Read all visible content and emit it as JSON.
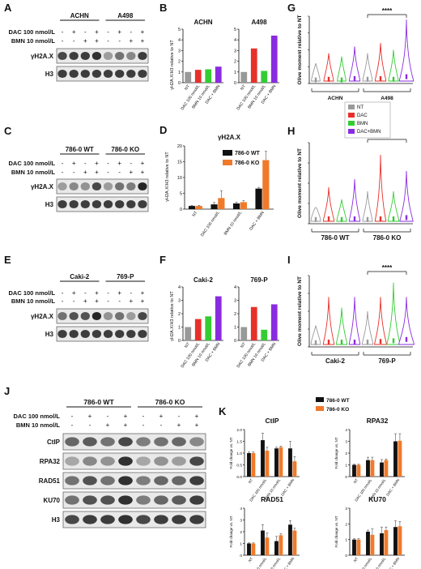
{
  "panels": {
    "A": {
      "letter": "A",
      "groups": [
        "ACHN",
        "A498"
      ],
      "dac_label": "DAC 100 nmol/L",
      "bmn_label": "BMN 10 nmol/L",
      "dac_signs": [
        "-",
        "+",
        "-",
        "+",
        "-",
        "+",
        "-",
        "+"
      ],
      "bmn_signs": [
        "-",
        "-",
        "+",
        "+",
        "-",
        "-",
        "+",
        "+"
      ],
      "bands": [
        "γH2A.X",
        "H3"
      ]
    },
    "C": {
      "letter": "C",
      "groups": [
        "786-0 WT",
        "786-0 KO"
      ],
      "dac_label": "DAC 100 nmol/L",
      "bmn_label": "BMN 10 nmol/L",
      "dac_signs": [
        "-",
        "+",
        "-",
        "+",
        "-",
        "+",
        "-",
        "+"
      ],
      "bmn_signs": [
        "-",
        "-",
        "+",
        "+",
        "-",
        "-",
        "+",
        "+"
      ],
      "bands": [
        "γH2A.X",
        "H3"
      ]
    },
    "E": {
      "letter": "E",
      "groups": [
        "Caki-2",
        "769-P"
      ],
      "dac_label": "DAC 100 nmol/L",
      "bmn_label": "BMN 10 nmol/L",
      "dac_signs": [
        "-",
        "+",
        "-",
        "+",
        "-",
        "+",
        "-",
        "+"
      ],
      "bmn_signs": [
        "-",
        "-",
        "+",
        "+",
        "-",
        "-",
        "+",
        "+"
      ],
      "bands": [
        "γH2A.X",
        "H3"
      ]
    },
    "J": {
      "letter": "J",
      "groups": [
        "786-0 WT",
        "786-0 KO"
      ],
      "dac_label": "DAC 100 nmol/L",
      "bmn_label": "BMN 10 nmol/L",
      "dac_signs": [
        "-",
        "+",
        "-",
        "+",
        "-",
        "+",
        "-",
        "+"
      ],
      "bmn_signs": [
        "-",
        "-",
        "+",
        "+",
        "-",
        "-",
        "+",
        "+"
      ],
      "bands": [
        "CtIP",
        "RPA32",
        "RAD51",
        "KU70",
        "H3"
      ]
    },
    "G": {
      "letter": "G",
      "ylabel": "Olive moment relative to NT",
      "sig": "****",
      "groups": [
        "ACHN",
        "A498"
      ]
    },
    "H": {
      "letter": "H",
      "ylabel": "Olive moment relative to NT",
      "sig": "*",
      "groups": [
        "786-0 WT",
        "786-0 KO"
      ]
    },
    "I": {
      "letter": "I",
      "ylabel": "Olive moment relative to NT",
      "sig": "****",
      "groups": [
        "Caki-2",
        "769-P"
      ]
    },
    "violin_legend": [
      "NT",
      "DAC",
      "BMN",
      "DAC+BMN"
    ],
    "K_legend": [
      "786-0 WT",
      "786-0 KO"
    ],
    "letters": {
      "B": "B",
      "D": "D",
      "F": "F",
      "K": "K"
    }
  },
  "colors": {
    "NT": "#999999",
    "DAC": "#e8302a",
    "BMN": "#33cc33",
    "DACBMN": "#8a2be2",
    "WT": "#111111",
    "KO": "#f07a2a"
  },
  "chart_data": [
    {
      "panel": "B",
      "type": "bar",
      "ylabel": "γH2A.X/H3 relative to NT",
      "categories": [
        "NT",
        "DAC 100 nmol/L",
        "BMN 10 nmol/L",
        "DAC + BMN"
      ],
      "subplots": [
        {
          "title": "ACHN",
          "ylim": [
            0,
            5
          ],
          "yticks": [
            0,
            1,
            2,
            3,
            4,
            5
          ],
          "values": [
            1.0,
            1.2,
            1.25,
            1.5
          ]
        },
        {
          "title": "A498",
          "ylim": [
            0,
            5
          ],
          "yticks": [
            0,
            1,
            2,
            3,
            4,
            5
          ],
          "values": [
            1.0,
            3.2,
            1.1,
            4.4
          ]
        }
      ]
    },
    {
      "panel": "D",
      "type": "bar",
      "title": "γH2A.X",
      "ylabel": "γH2A.X/H3 relative to NT",
      "ylim": [
        0,
        20
      ],
      "yticks": [
        0,
        5,
        10,
        15,
        20
      ],
      "categories": [
        "NT",
        "DAC 100 nmol/L",
        "BMN 10 nmol/L",
        "DAC + BMN"
      ],
      "series": [
        {
          "name": "786-0 WT",
          "values": [
            1.0,
            1.5,
            1.8,
            6.5
          ],
          "errors": [
            0.2,
            0.6,
            0.4,
            0.4
          ]
        },
        {
          "name": "786-0 KO",
          "values": [
            1.0,
            3.5,
            2.2,
            15.5
          ],
          "errors": [
            0.2,
            2.3,
            0.5,
            2.8
          ]
        }
      ]
    },
    {
      "panel": "F",
      "type": "bar",
      "ylabel": "γH2A.X/H3 relative to NT",
      "categories": [
        "NT",
        "DAC 100 nmol/L",
        "BMN 10 nmol/L",
        "DAC + BMN"
      ],
      "subplots": [
        {
          "title": "Caki-2",
          "ylim": [
            0,
            4
          ],
          "yticks": [
            0,
            1,
            2,
            3,
            4
          ],
          "values": [
            1.0,
            1.6,
            1.8,
            3.3
          ]
        },
        {
          "title": "769-P",
          "ylim": [
            0,
            4
          ],
          "yticks": [
            0,
            1,
            2,
            3,
            4
          ],
          "values": [
            1.0,
            2.5,
            0.8,
            2.7
          ]
        }
      ]
    },
    {
      "panel": "K",
      "type": "bar",
      "ylabel": "Fold change vs. NT",
      "categories": [
        "NT",
        "DAC 100 nmol/L",
        "BMN 10 nmol/L",
        "DAC + BMN"
      ],
      "subplots": [
        {
          "title": "CtIP",
          "ylim": [
            0,
            2.0
          ],
          "yticks": [
            "0.0",
            "0.5",
            "1.0",
            "1.5",
            "2.0"
          ],
          "series": [
            {
              "name": "786-0 WT",
              "values": [
                1.0,
                1.55,
                1.2,
                1.2
              ],
              "errors": [
                0.05,
                0.3,
                0.05,
                0.3
              ]
            },
            {
              "name": "786-0 KO",
              "values": [
                1.0,
                1.1,
                1.25,
                0.65
              ],
              "errors": [
                0.05,
                0.15,
                0.05,
                0.2
              ]
            }
          ]
        },
        {
          "title": "RPA32",
          "ylim": [
            0,
            4
          ],
          "yticks": [
            "0",
            "1",
            "2",
            "3",
            "4"
          ],
          "series": [
            {
              "name": "786-0 WT",
              "values": [
                1.0,
                1.4,
                1.2,
                3.0
              ],
              "errors": [
                0.05,
                0.25,
                0.25,
                0.65
              ]
            },
            {
              "name": "786-0 KO",
              "values": [
                1.0,
                1.4,
                1.4,
                3.05
              ],
              "errors": [
                0.05,
                0.25,
                0.1,
                0.6
              ]
            }
          ]
        },
        {
          "title": "RAD51",
          "ylim": [
            0,
            4
          ],
          "yticks": [
            "0",
            "1",
            "2",
            "3",
            "4"
          ],
          "series": [
            {
              "name": "786-0 WT",
              "values": [
                1.0,
                2.1,
                1.2,
                2.6
              ],
              "errors": [
                0.05,
                0.5,
                0.4,
                0.35
              ]
            },
            {
              "name": "786-0 KO",
              "values": [
                1.0,
                1.5,
                1.7,
                2.1
              ],
              "errors": [
                0.05,
                0.4,
                0.15,
                0.2
              ]
            }
          ]
        },
        {
          "title": "KU70",
          "ylim": [
            0,
            3
          ],
          "yticks": [
            "0",
            "1",
            "2",
            "3"
          ],
          "series": [
            {
              "name": "786-0 WT",
              "values": [
                1.0,
                1.5,
                1.4,
                1.8
              ],
              "errors": [
                0.05,
                0.1,
                0.4,
                0.4
              ]
            },
            {
              "name": "786-0 KO",
              "values": [
                1.0,
                1.3,
                1.6,
                1.85
              ],
              "errors": [
                0.05,
                0.4,
                0.2,
                0.3
              ]
            }
          ]
        }
      ]
    }
  ]
}
